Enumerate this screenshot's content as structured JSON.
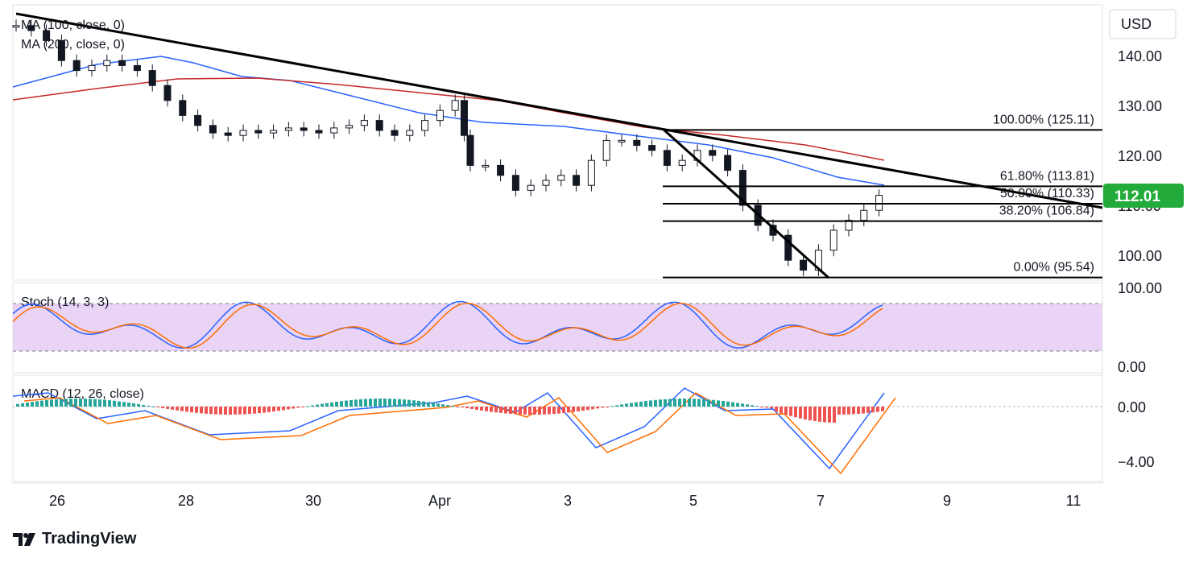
{
  "currency": "USD",
  "chart_data": {
    "type": "candlestick",
    "price_scale": [
      140.0,
      130.0,
      120.0,
      110.0,
      100.0
    ],
    "last_price": "112.01",
    "x_ticks": [
      "26",
      "28",
      "30",
      "Apr",
      "3",
      "5",
      "7",
      "9",
      "11"
    ],
    "moving_averages": [
      {
        "name": "MA (100, close, 0)",
        "color": "#2962ff"
      },
      {
        "name": "MA (200, close, 0)",
        "color": "#c62828"
      }
    ],
    "fibonacci": [
      {
        "label": "100.00% (125.11)",
        "value": 125.11
      },
      {
        "label": "61.80% (113.81)",
        "value": 113.81
      },
      {
        "label": "50.00% (110.33)",
        "value": 110.33
      },
      {
        "label": "38.20% (106.84)",
        "value": 106.84
      },
      {
        "label": "0.00% (95.54)",
        "value": 95.54
      }
    ],
    "close_path": [
      [
        0,
        146
      ],
      [
        0.5,
        145
      ],
      [
        1,
        143
      ],
      [
        1.5,
        139
      ],
      [
        2,
        137
      ],
      [
        2.5,
        138
      ],
      [
        3,
        139
      ],
      [
        3.5,
        138
      ],
      [
        4,
        137
      ],
      [
        4.5,
        134
      ],
      [
        5,
        131
      ],
      [
        5.5,
        128
      ],
      [
        6,
        126
      ],
      [
        6.5,
        124.5
      ],
      [
        7,
        124
      ],
      [
        7.5,
        125
      ],
      [
        8,
        124.5
      ],
      [
        8.5,
        125
      ],
      [
        9,
        125.5
      ],
      [
        9.5,
        125
      ],
      [
        10,
        124.5
      ],
      [
        10.5,
        125.5
      ],
      [
        11,
        126
      ],
      [
        11.5,
        127
      ],
      [
        12,
        125
      ],
      [
        12.5,
        124
      ],
      [
        13,
        125
      ],
      [
        13.5,
        127
      ],
      [
        14,
        129
      ],
      [
        14.5,
        131
      ],
      [
        14.8,
        124
      ],
      [
        15,
        118
      ],
      [
        15.5,
        118
      ],
      [
        16,
        116
      ],
      [
        16.5,
        113
      ],
      [
        17,
        114
      ],
      [
        17.5,
        115
      ],
      [
        18,
        116
      ],
      [
        18.5,
        114
      ],
      [
        19,
        119
      ],
      [
        19.5,
        123
      ],
      [
        20,
        123
      ],
      [
        20.5,
        122
      ],
      [
        21,
        121
      ],
      [
        21.5,
        118
      ],
      [
        22,
        119
      ],
      [
        22.5,
        121
      ],
      [
        23,
        120
      ],
      [
        23.5,
        117
      ],
      [
        24,
        110
      ],
      [
        24.5,
        106
      ],
      [
        25,
        104
      ],
      [
        25.5,
        99
      ],
      [
        26,
        97
      ],
      [
        26.5,
        101
      ],
      [
        27,
        105
      ],
      [
        27.5,
        107
      ],
      [
        28,
        109
      ],
      [
        28.5,
        112
      ]
    ],
    "stochastic": {
      "label": "Stoch (14, 3, 3)",
      "scale": [
        "100.00",
        "0.00"
      ],
      "upper_band": 80,
      "lower_band": 20
    },
    "macd": {
      "label": "MACD (12, 26, close)",
      "scale": [
        "0.00",
        "−4.00"
      ]
    }
  },
  "branding": {
    "name": "TradingView"
  }
}
